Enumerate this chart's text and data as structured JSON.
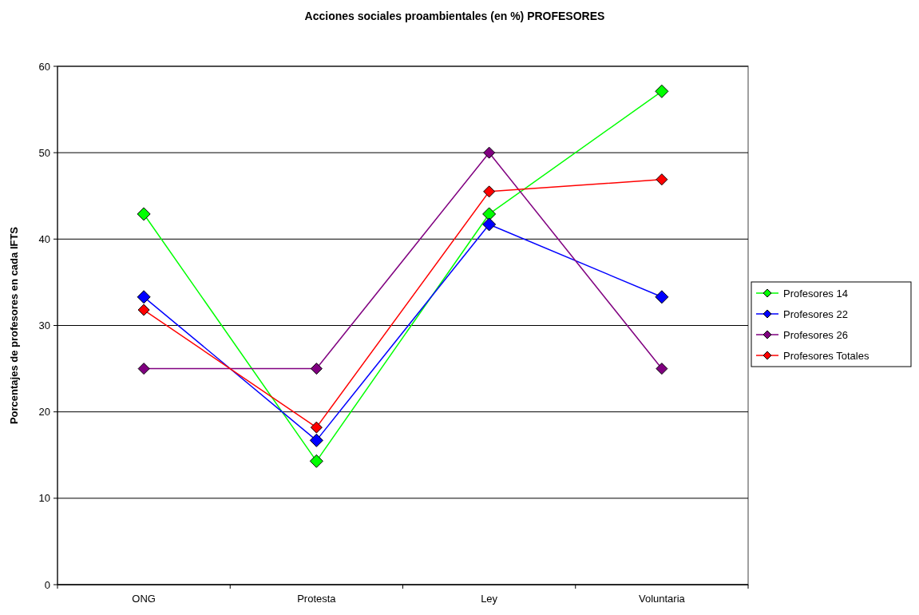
{
  "chart_data": {
    "type": "line",
    "title": "Acciones sociales proambientales (en %) PROFESORES",
    "ylabel": "Porcentajes de profesores en cada IFTS",
    "categories": [
      "ONG",
      "Protesta",
      "Ley",
      "Voluntaria"
    ],
    "series": [
      {
        "name": "Profesores 14",
        "color": "#00ff00",
        "values": [
          42.9,
          14.3,
          42.9,
          57.1
        ]
      },
      {
        "name": "Profesores 22",
        "color": "#0000ff",
        "values": [
          33.3,
          16.7,
          41.7,
          33.3
        ]
      },
      {
        "name": "Profesores 26",
        "color": "#800080",
        "values": [
          25,
          25,
          50,
          25
        ]
      },
      {
        "name": "Profesores Totales",
        "color": "#ff0000",
        "values": [
          31.8,
          18.2,
          45.5,
          46.9
        ]
      }
    ],
    "ylim": [
      0,
      60
    ],
    "yticks": [
      0,
      10,
      20,
      30,
      40,
      50,
      60
    ],
    "grid": "y",
    "legend": "right",
    "marker": "diamond",
    "line_style": "solid"
  }
}
